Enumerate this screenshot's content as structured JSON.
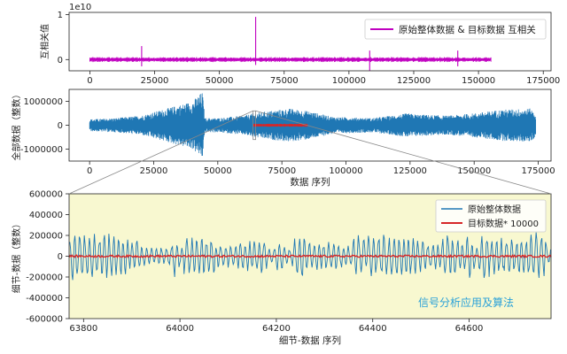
{
  "chart_data": [
    {
      "type": "line",
      "ylabel": "互相关值",
      "y_offset_text": "1e10",
      "xlim": [
        -8000,
        178000
      ],
      "ylim": [
        -0.25,
        1.05
      ],
      "x_ticks": [
        0,
        25000,
        50000,
        75000,
        100000,
        125000,
        150000,
        175000
      ],
      "y_ticks": [
        0,
        1
      ],
      "legend_position": "upper-right",
      "series": [
        {
          "name": "原始整体数据 & 目标数据 互相关",
          "color": "#c000c0",
          "points": [
            [
              0,
              0
            ],
            [
              64000,
              0
            ],
            [
              64000,
              0.95
            ],
            [
              64300,
              0.05
            ],
            [
              155000,
              0
            ]
          ]
        }
      ],
      "spikes": [
        {
          "x": 20000,
          "top": 0.3,
          "bottom": -0.15
        },
        {
          "x": 64000,
          "top": 0.95,
          "bottom": -0.12
        },
        {
          "x": 108000,
          "top": 0.2,
          "bottom": -0.25
        },
        {
          "x": 142000,
          "top": 0.2,
          "bottom": -0.15
        }
      ]
    },
    {
      "type": "line",
      "xlabel": "数据 序列",
      "ylabel": "全部数据（整数）",
      "xlim": [
        -8000,
        180000
      ],
      "ylim": [
        -1500000,
        1500000
      ],
      "x_ticks": [
        0,
        25000,
        50000,
        75000,
        100000,
        125000,
        150000,
        175000
      ],
      "y_ticks": [
        -1000000,
        0,
        1000000
      ],
      "series": [
        {
          "name": "原始整体数据",
          "color": "#1f77b4",
          "envelope": [
            [
              0,
              250000
            ],
            [
              10000,
              300000
            ],
            [
              20000,
              400000
            ],
            [
              30000,
              700000
            ],
            [
              40000,
              1000000
            ],
            [
              44000,
              1400000
            ],
            [
              45000,
              300000
            ],
            [
              50000,
              300000
            ],
            [
              60000,
              400000
            ],
            [
              64000,
              500000
            ],
            [
              70000,
              600000
            ],
            [
              78000,
              700000
            ],
            [
              85000,
              600000
            ],
            [
              95000,
              350000
            ],
            [
              110000,
              300000
            ],
            [
              118000,
              400000
            ],
            [
              124000,
              500000
            ],
            [
              128000,
              450000
            ],
            [
              140000,
              400000
            ],
            [
              150000,
              500000
            ],
            [
              160000,
              650000
            ],
            [
              172000,
              700000
            ],
            [
              174000,
              500000
            ]
          ]
        },
        {
          "name": "目标数据",
          "color": "#d62728",
          "x_range": [
            64000,
            85000
          ],
          "amplitude": 60000
        }
      ]
    },
    {
      "type": "line",
      "xlabel": "细节-数据 序列",
      "ylabel": "细节-数据（整数）",
      "xlim": [
        63770,
        64770
      ],
      "ylim": [
        -600000,
        600000
      ],
      "x_ticks": [
        63800,
        64000,
        64200,
        64400,
        64600
      ],
      "y_ticks": [
        -600000,
        -400000,
        -200000,
        0,
        200000,
        400000,
        600000
      ],
      "legend_position": "upper-right",
      "background": "#f8f8d0",
      "annotation": "信号分析应用及算法",
      "series": [
        {
          "name": "原始整体数据",
          "color": "#1f77b4",
          "amplitude": 250000
        },
        {
          "name": "目标数据* 10000",
          "color": "#d62728",
          "amplitude": 10000
        }
      ]
    }
  ]
}
